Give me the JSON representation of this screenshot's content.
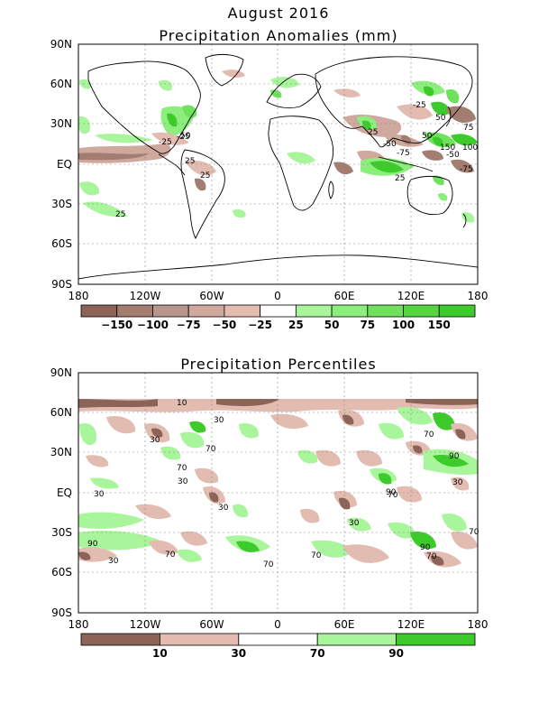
{
  "header": {
    "title": "August 2016",
    "panel1_title": "Precipitation Anomalies (mm)",
    "panel2_title": "Precipitation Percentiles"
  },
  "axes": {
    "lat_labels": [
      "90N",
      "60N",
      "30N",
      "EQ",
      "30S",
      "60S",
      "90S"
    ],
    "lon_labels": [
      "180",
      "120W",
      "60W",
      "0",
      "60E",
      "120E",
      "180"
    ]
  },
  "colors": {
    "dark_brown": "#8b6457",
    "mid_brown": "#a27d70",
    "light_brown1": "#b8968b",
    "light_brown2": "#cfa99e",
    "pale_brown": "#e3bcb1",
    "white": "#ffffff",
    "pale_green": "#a8f59b",
    "light_green": "#8cee7d",
    "green": "#6fe15c",
    "mid_green": "#55d641",
    "dark_green": "#3ccb2b"
  },
  "anomaly_colorbar": {
    "labels": [
      "-150",
      "-100",
      "-75",
      "-50",
      "-25",
      "25",
      "50",
      "75",
      "100",
      "150"
    ],
    "colors": [
      "#8b6457",
      "#a27d70",
      "#b8968b",
      "#cfa99e",
      "#e3bcb1",
      "#ffffff",
      "#a8f59b",
      "#8cee7d",
      "#6fe15c",
      "#55d641",
      "#3ccb2b"
    ]
  },
  "percentile_colorbar": {
    "labels": [
      "10",
      "30",
      "70",
      "90"
    ],
    "colors": [
      "#8b6457",
      "#e3bcb1",
      "#ffffff",
      "#a8f59b",
      "#3ccb2b"
    ]
  },
  "anomaly_contour_labels": [
    "25",
    "25",
    "25",
    "25",
    "25",
    "50",
    "50",
    "50",
    "75",
    "-25",
    "-25",
    "-25",
    "-50",
    "-50",
    "-75",
    "-75",
    "-75",
    "150",
    "100",
    "-25",
    "-25"
  ],
  "percentile_contour_labels": [
    "10",
    "30",
    "30",
    "30",
    "30",
    "30",
    "30",
    "30",
    "30",
    "70",
    "70",
    "70",
    "70",
    "70",
    "70",
    "70",
    "70",
    "70",
    "90",
    "90",
    "90",
    "90"
  ]
}
